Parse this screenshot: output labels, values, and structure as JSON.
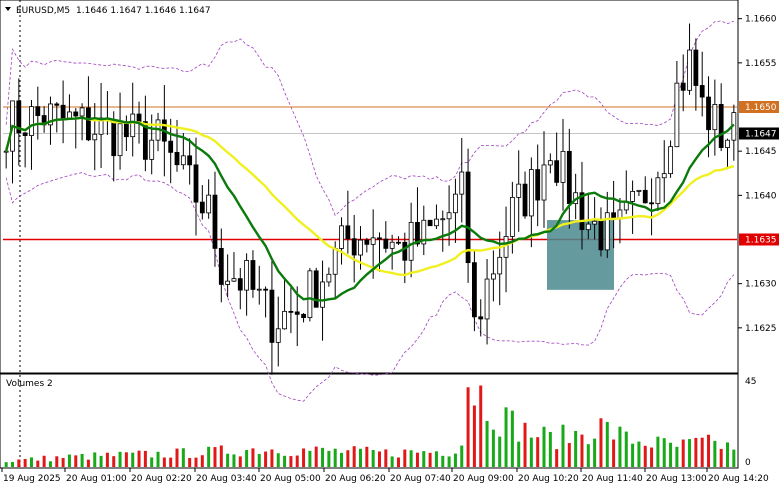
{
  "header": {
    "symbol": "EURUSD,M5",
    "ohlc": "1.1646 1.1647 1.1646 1.1647"
  },
  "volume_panel": {
    "label": "Volumes 2",
    "scale_labels": [
      "45",
      "0"
    ]
  },
  "colors": {
    "bull_volume": "#18a818",
    "bear_volume": "#e01818",
    "ma_fast": "#0a7a0a",
    "ma_slow": "#f0f020",
    "bollinger": "#a040c0",
    "level_upper": "#d07020",
    "level_lower": "#e00000",
    "highlight_box": "#4a8a8e"
  },
  "chart_data": [
    {
      "type": "candlestick",
      "symbol": "EURUSD",
      "timeframe": "M5",
      "ylim": [
        1.162,
        1.1662
      ],
      "y_ticks": [
        "1.1660",
        "1.1655",
        "1.1645",
        "1.1640",
        "1.1630",
        "1.1625"
      ],
      "x_ticks": [
        "19 Aug 2025",
        "20 Aug 01:00",
        "20 Aug 02:20",
        "20 Aug 03:40",
        "20 Aug 05:00",
        "20 Aug 06:20",
        "20 Aug 07:40",
        "20 Aug 09:00",
        "20 Aug 10:20",
        "20 Aug 11:40",
        "20 Aug 13:00",
        "20 Aug 14:20"
      ],
      "levels": [
        {
          "label": "1.1650",
          "value": 1.165
        },
        {
          "label": "1.1635",
          "value": 1.1635
        }
      ],
      "current_price": {
        "label": "1.1647",
        "value": 1.1647
      },
      "highlight_zone": {
        "price_high": 1.16372,
        "price_low": 1.16293
      },
      "price_path": [
        [
          0,
          1.1648
        ],
        [
          6,
          1.1649
        ],
        [
          12,
          1.1648
        ],
        [
          18,
          1.1647
        ],
        [
          24,
          1.1646
        ],
        [
          28,
          1.1642
        ],
        [
          32,
          1.1638
        ],
        [
          34,
          1.1632
        ],
        [
          38,
          1.163
        ],
        [
          42,
          1.1626
        ],
        [
          46,
          1.1627
        ],
        [
          50,
          1.1631
        ],
        [
          54,
          1.1635
        ],
        [
          58,
          1.1636
        ],
        [
          62,
          1.1634
        ],
        [
          66,
          1.1635
        ],
        [
          70,
          1.1638
        ],
        [
          72,
          1.164
        ],
        [
          73,
          1.1633
        ],
        [
          74,
          1.1625
        ],
        [
          76,
          1.163
        ],
        [
          80,
          1.1638
        ],
        [
          84,
          1.1642
        ],
        [
          86,
          1.1646
        ],
        [
          88,
          1.1642
        ],
        [
          92,
          1.1637
        ],
        [
          96,
          1.1635
        ],
        [
          100,
          1.1639
        ],
        [
          104,
          1.1645
        ],
        [
          106,
          1.1652
        ],
        [
          108,
          1.1655
        ],
        [
          110,
          1.165
        ],
        [
          113,
          1.1647
        ],
        [
          115,
          1.1647
        ]
      ],
      "volume_path": [
        [
          0,
          3
        ],
        [
          10,
          5
        ],
        [
          20,
          6
        ],
        [
          30,
          7
        ],
        [
          40,
          9
        ],
        [
          50,
          8
        ],
        [
          60,
          7
        ],
        [
          70,
          8
        ],
        [
          72,
          12
        ],
        [
          73,
          45
        ],
        [
          74,
          40
        ],
        [
          78,
          25
        ],
        [
          82,
          18
        ],
        [
          86,
          14
        ],
        [
          90,
          16
        ],
        [
          94,
          20
        ],
        [
          98,
          14
        ],
        [
          102,
          12
        ],
        [
          106,
          10
        ],
        [
          110,
          12
        ],
        [
          115,
          10
        ]
      ]
    }
  ]
}
